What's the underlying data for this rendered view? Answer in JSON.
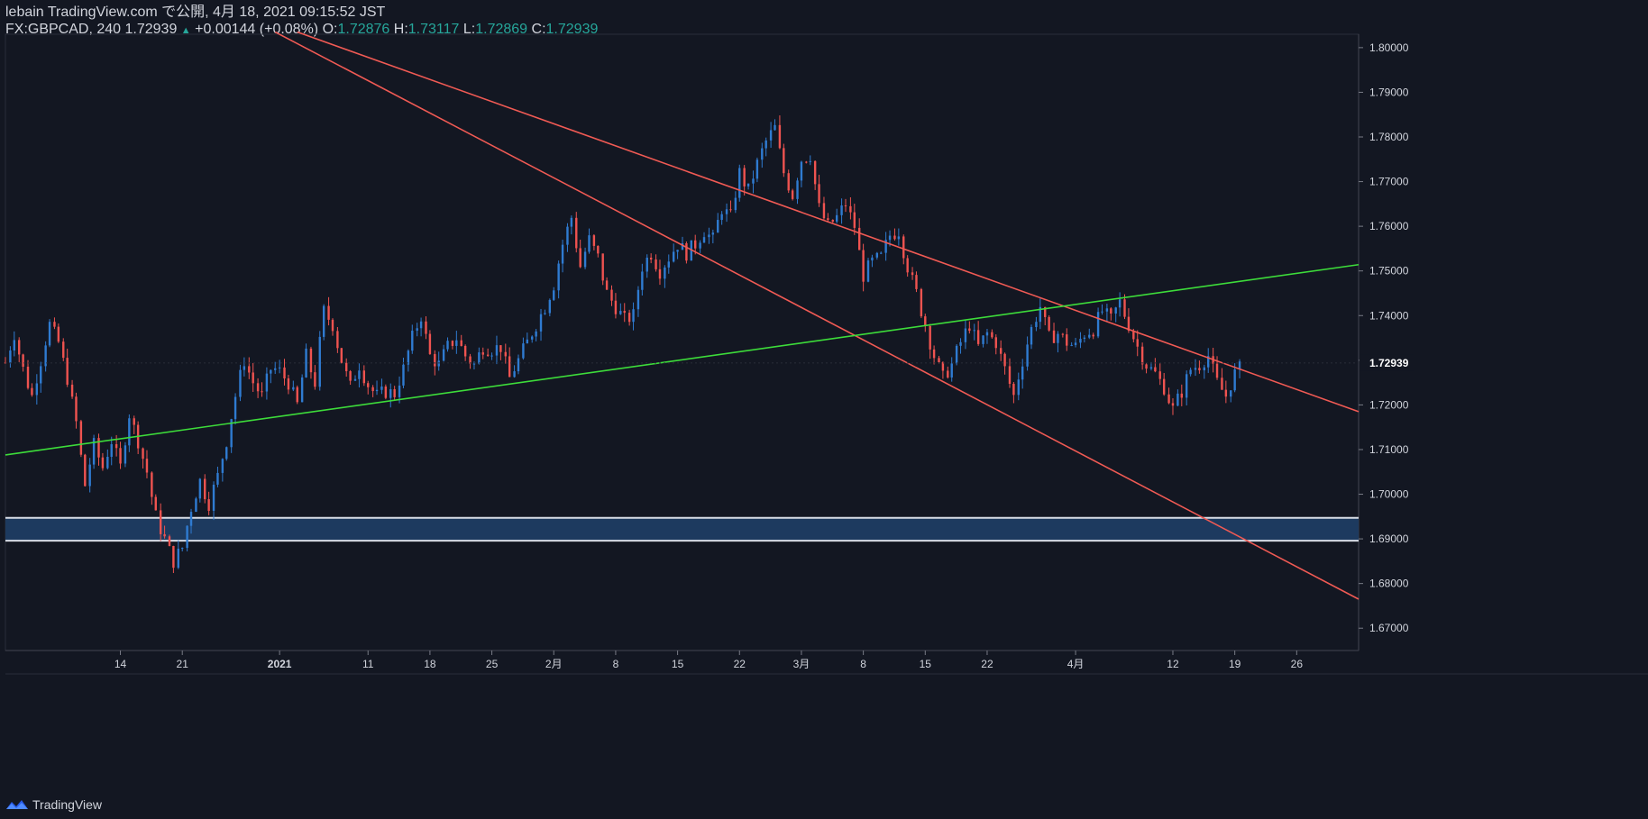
{
  "header": {
    "publish_line": "lebain TradingView.com で公開, 4月 18, 2021 09:15:52 JST",
    "symbol": "FX:GBPCAD, 240",
    "last": "1.72939",
    "up_arrow": "▲",
    "change": "+0.00144 (+0.08%)",
    "o_label": "O:",
    "o_val": "1.72876",
    "h_label": "H:",
    "h_val": "1.73117",
    "l_label": "L:",
    "l_val": "1.72869",
    "c_label": "C:",
    "c_val": "1.72939"
  },
  "footer": {
    "brand": "TradingView",
    "logo_icon": "tradingview-logo-icon"
  },
  "colors": {
    "background": "#131722",
    "up": "#2f7bd1",
    "down": "#ef5350",
    "trend_red": "#f05a54",
    "trend_green": "#3ddc3a",
    "zone_fill": "#1d3a5f",
    "zone_border": "#d8dde6",
    "axis_text": "#d1d4dc",
    "last_price_bg": "#131722"
  },
  "chart_data": {
    "type": "candlestick",
    "symbol": "FX:GBPCAD",
    "interval": "240",
    "ylim": [
      1.665,
      1.803
    ],
    "y_ticks": [
      "1.80000",
      "1.79000",
      "1.78000",
      "1.77000",
      "1.76000",
      "1.75000",
      "1.74000",
      "1.73000",
      "1.72000",
      "1.71000",
      "1.70000",
      "1.69000",
      "1.68000",
      "1.67000"
    ],
    "y_tick_values": [
      1.8,
      1.79,
      1.78,
      1.77,
      1.76,
      1.75,
      1.74,
      1.73,
      1.72,
      1.71,
      1.7,
      1.69,
      1.68,
      1.67
    ],
    "x_ticks": [
      "14",
      "21",
      "2021",
      "11",
      "18",
      "25",
      "2月",
      "8",
      "15",
      "22",
      "3月",
      "8",
      "15",
      "22",
      "4月",
      "12",
      "19",
      "26"
    ],
    "x_tick_days": [
      -18,
      -11,
      0,
      10,
      17,
      24,
      31,
      38,
      45,
      52,
      59,
      66,
      73,
      80,
      90,
      101,
      108,
      115
    ],
    "x_range_days": [
      -31,
      122
    ],
    "last_price_label": "1.72939",
    "last_price": 1.72939,
    "close_path": [
      [
        -31,
        1.7295
      ],
      [
        -30,
        1.736
      ],
      [
        -29,
        1.728
      ],
      [
        -28,
        1.722
      ],
      [
        -27,
        1.73
      ],
      [
        -26,
        1.738
      ],
      [
        -25,
        1.734
      ],
      [
        -24,
        1.726
      ],
      [
        -23,
        1.716
      ],
      [
        -22,
        1.702
      ],
      [
        -21,
        1.711
      ],
      [
        -20,
        1.706
      ],
      [
        -19,
        1.712
      ],
      [
        -18,
        1.706
      ],
      [
        -17,
        1.718
      ],
      [
        -16,
        1.712
      ],
      [
        -15,
        1.705
      ],
      [
        -14,
        1.695
      ],
      [
        -13,
        1.69
      ],
      [
        -12,
        1.685
      ],
      [
        -11,
        1.688
      ],
      [
        -10,
        1.697
      ],
      [
        -9,
        1.703
      ],
      [
        -8,
        1.698
      ],
      [
        -7,
        1.704
      ],
      [
        -6,
        1.712
      ],
      [
        -5,
        1.722
      ],
      [
        -4,
        1.73
      ],
      [
        -3,
        1.725
      ],
      [
        -2,
        1.722
      ],
      [
        -1,
        1.728
      ],
      [
        0,
        1.7275
      ],
      [
        -0.5,
        1.728
      ],
      [
        1,
        1.725
      ],
      [
        2,
        1.72
      ],
      [
        3,
        1.731
      ],
      [
        4,
        1.725
      ],
      [
        5,
        1.741
      ],
      [
        6,
        1.738
      ],
      [
        7,
        1.73
      ],
      [
        8,
        1.724
      ],
      [
        9,
        1.729
      ],
      [
        10,
        1.7245
      ],
      [
        11,
        1.722
      ],
      [
        12,
        1.723
      ],
      [
        13,
        1.7225
      ],
      [
        14,
        1.728
      ],
      [
        15,
        1.735
      ],
      [
        16,
        1.74
      ],
      [
        17,
        1.731
      ],
      [
        18,
        1.729
      ],
      [
        19,
        1.733
      ],
      [
        20,
        1.735
      ],
      [
        21,
        1.731
      ],
      [
        22,
        1.729
      ],
      [
        23,
        1.733
      ],
      [
        24,
        1.7325
      ],
      [
        25,
        1.733
      ],
      [
        26,
        1.726
      ],
      [
        27,
        1.73
      ],
      [
        28,
        1.734
      ],
      [
        29,
        1.738
      ],
      [
        30,
        1.742
      ],
      [
        31,
        1.747
      ],
      [
        32,
        1.756
      ],
      [
        33,
        1.762
      ],
      [
        34,
        1.751
      ],
      [
        35,
        1.757
      ],
      [
        36,
        1.753
      ],
      [
        37,
        1.745
      ],
      [
        38,
        1.742
      ],
      [
        39,
        1.739
      ],
      [
        40,
        1.74
      ],
      [
        41,
        1.751
      ],
      [
        42,
        1.754
      ],
      [
        43,
        1.75
      ],
      [
        44,
        1.753
      ],
      [
        45,
        1.756
      ],
      [
        46,
        1.754
      ],
      [
        47,
        1.756
      ],
      [
        48,
        1.759
      ],
      [
        49,
        1.757
      ],
      [
        50,
        1.764
      ],
      [
        51,
        1.762
      ],
      [
        52,
        1.772
      ],
      [
        53,
        1.768
      ],
      [
        54,
        1.774
      ],
      [
        55,
        1.779
      ],
      [
        56,
        1.782
      ],
      [
        57,
        1.772
      ],
      [
        58,
        1.767
      ],
      [
        59,
        1.775
      ],
      [
        60,
        1.776
      ],
      [
        61,
        1.764
      ],
      [
        62,
        1.76
      ],
      [
        63,
        1.762
      ],
      [
        64,
        1.765
      ],
      [
        65,
        1.76
      ],
      [
        66,
        1.749
      ],
      [
        67,
        1.752
      ],
      [
        68,
        1.753
      ],
      [
        69,
        1.758
      ],
      [
        70,
        1.759
      ],
      [
        71,
        1.751
      ],
      [
        72,
        1.745
      ],
      [
        73,
        1.738
      ],
      [
        74,
        1.731
      ],
      [
        75,
        1.726
      ],
      [
        76,
        1.729
      ],
      [
        77,
        1.734
      ],
      [
        78,
        1.738
      ],
      [
        79,
        1.733
      ],
      [
        80,
        1.736
      ],
      [
        81,
        1.734
      ],
      [
        82,
        1.728
      ],
      [
        83,
        1.722
      ],
      [
        84,
        1.73
      ],
      [
        85,
        1.737
      ],
      [
        86,
        1.742
      ],
      [
        87,
        1.735
      ],
      [
        88,
        1.736
      ],
      [
        89,
        1.734
      ],
      [
        90,
        1.733
      ],
      [
        91,
        1.736
      ],
      [
        92,
        1.737
      ],
      [
        93,
        1.741
      ],
      [
        94,
        1.739
      ],
      [
        95,
        1.743
      ],
      [
        96,
        1.738
      ],
      [
        97,
        1.733
      ],
      [
        98,
        1.729
      ],
      [
        99,
        1.727
      ],
      [
        100,
        1.724
      ],
      [
        101,
        1.719
      ],
      [
        102,
        1.723
      ],
      [
        103,
        1.728
      ],
      [
        104,
        1.729
      ],
      [
        105,
        1.731
      ],
      [
        106,
        1.725
      ],
      [
        107,
        1.722
      ],
      [
        108,
        1.727
      ],
      [
        109,
        1.729
      ]
    ],
    "trend_lines": [
      {
        "name": "upper-red",
        "color": "#f05a54",
        "from": [
          2,
          1.8035
        ],
        "to": [
          122,
          1.7185
        ]
      },
      {
        "name": "lower-red",
        "color": "#f05a54",
        "from": [
          -0.5,
          1.8035
        ],
        "to": [
          122,
          1.6765
        ]
      },
      {
        "name": "green-support",
        "color": "#3ddc3a",
        "from": [
          -31,
          1.7088
        ],
        "to": [
          122,
          1.7514
        ]
      }
    ],
    "zone": {
      "top": 1.6947,
      "bottom": 1.6896
    }
  }
}
